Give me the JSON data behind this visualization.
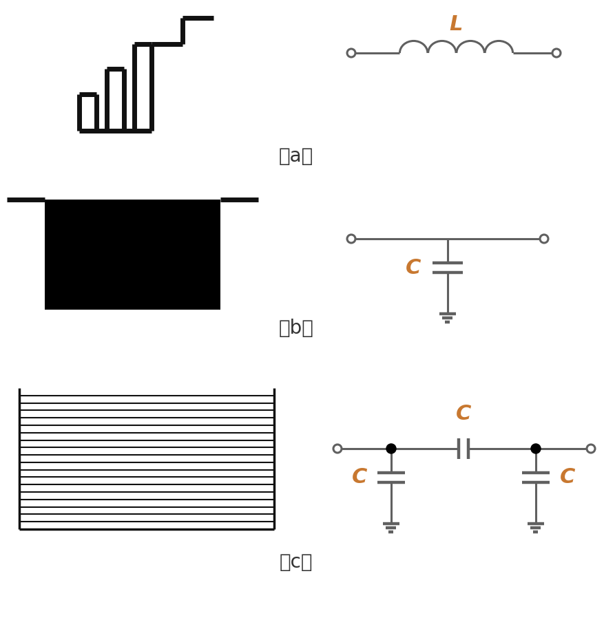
{
  "fig_width": 8.78,
  "fig_height": 9.17,
  "bg_color": "#ffffff",
  "line_color": "#606060",
  "label_color": "#c87830",
  "label_fontsize": 20,
  "caption_fontsize": 20,
  "captions": [
    "（a）",
    "（b）",
    "（c）"
  ],
  "L_label": "L",
  "C_label": "C",
  "lw": 2.2,
  "lw_thick": 3.2,
  "lw_phy": 5.0
}
